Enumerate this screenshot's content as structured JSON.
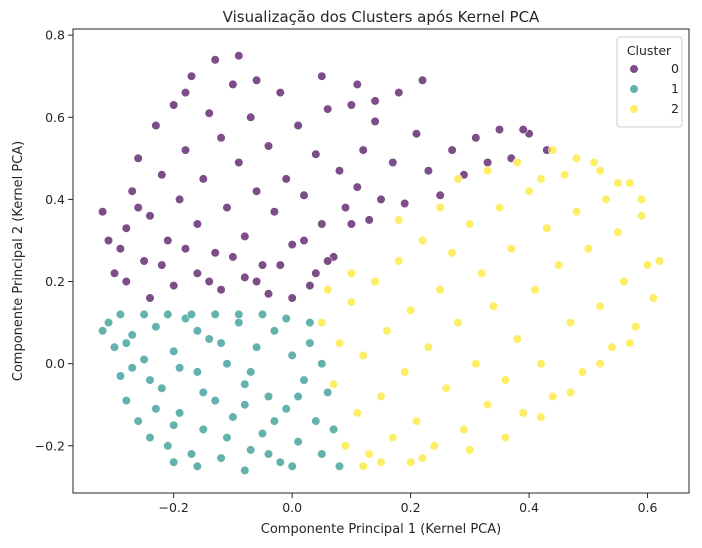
{
  "chart_data": {
    "type": "scatter",
    "title": "Visualização dos Clusters após Kernel PCA",
    "xlabel": "Componente Principal 1 (Kernel PCA)",
    "ylabel": "Componente Principal 2 (Kernel PCA)",
    "xlim": [
      -0.37,
      0.67
    ],
    "ylim": [
      -0.315,
      0.815
    ],
    "xticks": [
      -0.2,
      0.0,
      0.2,
      0.4,
      0.6
    ],
    "xtick_labels": [
      "−0.2",
      "0.0",
      "0.2",
      "0.4",
      "0.6"
    ],
    "yticks": [
      -0.2,
      0.0,
      0.2,
      0.4,
      0.6,
      0.8
    ],
    "ytick_labels": [
      "−0.2",
      "0.0",
      "0.2",
      "0.4",
      "0.6",
      "0.8"
    ],
    "grid": false,
    "legend": {
      "title": "Cluster",
      "placement": "top-right",
      "entries": [
        "0",
        "1",
        "2"
      ]
    },
    "series": [
      {
        "name": "0",
        "color": "#440154",
        "region": "upper-left",
        "points": [
          [
            -0.3,
            0.22
          ],
          [
            -0.29,
            0.28
          ],
          [
            -0.28,
            0.33
          ],
          [
            -0.27,
            0.42
          ],
          [
            -0.26,
            0.5
          ],
          [
            -0.25,
            0.25
          ],
          [
            -0.24,
            0.36
          ],
          [
            -0.23,
            0.58
          ],
          [
            -0.22,
            0.46
          ],
          [
            -0.21,
            0.3
          ],
          [
            -0.2,
            0.63
          ],
          [
            -0.19,
            0.4
          ],
          [
            -0.18,
            0.52
          ],
          [
            -0.17,
            0.7
          ],
          [
            -0.16,
            0.34
          ],
          [
            -0.15,
            0.45
          ],
          [
            -0.14,
            0.61
          ],
          [
            -0.13,
            0.27
          ],
          [
            -0.12,
            0.55
          ],
          [
            -0.11,
            0.38
          ],
          [
            -0.1,
            0.68
          ],
          [
            -0.09,
            0.49
          ],
          [
            -0.08,
            0.31
          ],
          [
            -0.07,
            0.6
          ],
          [
            -0.06,
            0.42
          ],
          [
            -0.05,
            0.24
          ],
          [
            -0.04,
            0.53
          ],
          [
            -0.03,
            0.37
          ],
          [
            -0.02,
            0.66
          ],
          [
            -0.01,
            0.45
          ],
          [
            0.0,
            0.29
          ],
          [
            0.01,
            0.58
          ],
          [
            0.02,
            0.41
          ],
          [
            0.03,
            0.19
          ],
          [
            0.04,
            0.51
          ],
          [
            0.05,
            0.34
          ],
          [
            0.06,
            0.62
          ],
          [
            0.07,
            0.26
          ],
          [
            0.08,
            0.47
          ],
          [
            0.09,
            0.38
          ],
          [
            0.1,
            0.63
          ],
          [
            0.11,
            0.43
          ],
          [
            0.12,
            0.52
          ],
          [
            0.13,
            0.35
          ],
          [
            0.14,
            0.59
          ],
          [
            0.15,
            0.4
          ],
          [
            0.17,
            0.49
          ],
          [
            0.19,
            0.39
          ],
          [
            0.21,
            0.56
          ],
          [
            0.23,
            0.47
          ],
          [
            0.25,
            0.41
          ],
          [
            0.27,
            0.52
          ],
          [
            0.29,
            0.46
          ],
          [
            0.31,
            0.55
          ],
          [
            0.33,
            0.49
          ],
          [
            0.35,
            0.57
          ],
          [
            0.37,
            0.5
          ],
          [
            0.4,
            0.56
          ],
          [
            0.43,
            0.52
          ],
          [
            -0.28,
            0.2
          ],
          [
            -0.24,
            0.16
          ],
          [
            -0.2,
            0.19
          ],
          [
            -0.16,
            0.22
          ],
          [
            -0.12,
            0.18
          ],
          [
            -0.08,
            0.21
          ],
          [
            -0.04,
            0.17
          ],
          [
            0.0,
            0.16
          ],
          [
            0.04,
            0.22
          ],
          [
            -0.31,
            0.3
          ],
          [
            -0.26,
            0.38
          ],
          [
            -0.22,
            0.24
          ],
          [
            -0.18,
            0.28
          ],
          [
            -0.14,
            0.2
          ],
          [
            -0.1,
            0.26
          ],
          [
            -0.06,
            0.2
          ],
          [
            -0.02,
            0.24
          ],
          [
            0.02,
            0.3
          ],
          [
            0.06,
            0.25
          ],
          [
            0.1,
            0.34
          ],
          [
            -0.32,
            0.37
          ],
          [
            -0.09,
            0.75
          ],
          [
            -0.13,
            0.74
          ],
          [
            0.05,
            0.7
          ],
          [
            0.11,
            0.68
          ],
          [
            0.18,
            0.66
          ],
          [
            0.22,
            0.69
          ],
          [
            -0.18,
            0.66
          ],
          [
            -0.06,
            0.69
          ],
          [
            0.14,
            0.64
          ],
          [
            0.39,
            0.57
          ]
        ]
      },
      {
        "name": "1",
        "color": "#21918c",
        "region": "lower-left",
        "points": [
          [
            -0.31,
            0.1
          ],
          [
            -0.3,
            0.04
          ],
          [
            -0.29,
            -0.03
          ],
          [
            -0.28,
            -0.09
          ],
          [
            -0.27,
            0.07
          ],
          [
            -0.26,
            -0.14
          ],
          [
            -0.25,
            0.01
          ],
          [
            -0.24,
            -0.18
          ],
          [
            -0.23,
            0.09
          ],
          [
            -0.22,
            -0.06
          ],
          [
            -0.21,
            -0.2
          ],
          [
            -0.2,
            0.03
          ],
          [
            -0.19,
            -0.12
          ],
          [
            -0.18,
            0.11
          ],
          [
            -0.17,
            -0.22
          ],
          [
            -0.16,
            -0.02
          ],
          [
            -0.15,
            -0.16
          ],
          [
            -0.14,
            0.06
          ],
          [
            -0.13,
            -0.09
          ],
          [
            -0.12,
            -0.23
          ],
          [
            -0.11,
            0.0
          ],
          [
            -0.1,
            -0.13
          ],
          [
            -0.09,
            0.1
          ],
          [
            -0.08,
            -0.05
          ],
          [
            -0.07,
            -0.21
          ],
          [
            -0.06,
            0.04
          ],
          [
            -0.05,
            -0.17
          ],
          [
            -0.04,
            -0.08
          ],
          [
            -0.03,
            0.08
          ],
          [
            -0.02,
            -0.24
          ],
          [
            -0.01,
            -0.11
          ],
          [
            0.0,
            0.02
          ],
          [
            0.01,
            -0.19
          ],
          [
            0.02,
            -0.04
          ],
          [
            0.03,
            0.05
          ],
          [
            0.04,
            -0.14
          ],
          [
            0.05,
            -0.22
          ],
          [
            0.06,
            -0.07
          ],
          [
            0.07,
            -0.16
          ],
          [
            0.08,
            -0.25
          ],
          [
            -0.29,
            0.12
          ],
          [
            -0.25,
            0.12
          ],
          [
            -0.21,
            0.12
          ],
          [
            -0.17,
            0.12
          ],
          [
            -0.13,
            0.12
          ],
          [
            -0.09,
            0.12
          ],
          [
            -0.05,
            0.12
          ],
          [
            -0.01,
            0.11
          ],
          [
            0.03,
            0.1
          ],
          [
            -0.27,
            -0.01
          ],
          [
            -0.23,
            -0.11
          ],
          [
            -0.19,
            -0.01
          ],
          [
            -0.15,
            -0.07
          ],
          [
            -0.11,
            -0.18
          ],
          [
            -0.07,
            -0.02
          ],
          [
            -0.03,
            -0.14
          ],
          [
            0.01,
            -0.08
          ],
          [
            0.05,
            0.0
          ],
          [
            -0.2,
            -0.24
          ],
          [
            -0.08,
            -0.26
          ],
          [
            0.0,
            -0.25
          ],
          [
            -0.16,
            -0.25
          ],
          [
            -0.32,
            0.08
          ],
          [
            -0.28,
            0.05
          ],
          [
            -0.24,
            -0.04
          ],
          [
            -0.2,
            -0.15
          ],
          [
            -0.16,
            0.08
          ],
          [
            -0.12,
            0.05
          ],
          [
            -0.08,
            -0.1
          ],
          [
            -0.04,
            -0.22
          ]
        ]
      },
      {
        "name": "2",
        "color": "#fde725",
        "region": "right",
        "points": [
          [
            0.05,
            0.1
          ],
          [
            0.07,
            -0.05
          ],
          [
            0.08,
            0.05
          ],
          [
            0.09,
            -0.2
          ],
          [
            0.1,
            0.15
          ],
          [
            0.11,
            -0.12
          ],
          [
            0.12,
            0.02
          ],
          [
            0.13,
            -0.22
          ],
          [
            0.14,
            0.2
          ],
          [
            0.15,
            -0.08
          ],
          [
            0.16,
            0.08
          ],
          [
            0.17,
            -0.18
          ],
          [
            0.18,
            0.25
          ],
          [
            0.19,
            -0.02
          ],
          [
            0.2,
            0.13
          ],
          [
            0.21,
            -0.14
          ],
          [
            0.22,
            0.3
          ],
          [
            0.23,
            0.04
          ],
          [
            0.24,
            -0.2
          ],
          [
            0.25,
            0.18
          ],
          [
            0.26,
            -0.06
          ],
          [
            0.27,
            0.27
          ],
          [
            0.28,
            0.1
          ],
          [
            0.29,
            -0.16
          ],
          [
            0.3,
            0.34
          ],
          [
            0.31,
            0.0
          ],
          [
            0.32,
            0.22
          ],
          [
            0.33,
            -0.1
          ],
          [
            0.34,
            0.14
          ],
          [
            0.35,
            0.38
          ],
          [
            0.36,
            -0.04
          ],
          [
            0.37,
            0.28
          ],
          [
            0.38,
            0.06
          ],
          [
            0.39,
            -0.12
          ],
          [
            0.4,
            0.42
          ],
          [
            0.41,
            0.18
          ],
          [
            0.42,
            0.0
          ],
          [
            0.43,
            0.33
          ],
          [
            0.44,
            -0.08
          ],
          [
            0.45,
            0.24
          ],
          [
            0.46,
            0.46
          ],
          [
            0.47,
            0.1
          ],
          [
            0.48,
            0.37
          ],
          [
            0.49,
            -0.02
          ],
          [
            0.5,
            0.28
          ],
          [
            0.51,
            0.49
          ],
          [
            0.52,
            0.14
          ],
          [
            0.53,
            0.4
          ],
          [
            0.54,
            0.04
          ],
          [
            0.55,
            0.32
          ],
          [
            0.56,
            0.2
          ],
          [
            0.57,
            0.44
          ],
          [
            0.58,
            0.09
          ],
          [
            0.59,
            0.36
          ],
          [
            0.6,
            0.24
          ],
          [
            0.61,
            0.16
          ],
          [
            0.62,
            0.25
          ],
          [
            0.44,
            0.52
          ],
          [
            0.48,
            0.5
          ],
          [
            0.52,
            0.47
          ],
          [
            0.15,
            -0.24
          ],
          [
            0.22,
            -0.23
          ],
          [
            0.3,
            -0.21
          ],
          [
            0.36,
            -0.18
          ],
          [
            0.42,
            -0.13
          ],
          [
            0.47,
            -0.07
          ],
          [
            0.52,
            0.0
          ],
          [
            0.57,
            0.05
          ],
          [
            0.1,
            0.22
          ],
          [
            0.06,
            0.18
          ],
          [
            0.12,
            -0.25
          ],
          [
            0.2,
            -0.24
          ],
          [
            0.28,
            0.45
          ],
          [
            0.33,
            0.47
          ],
          [
            0.38,
            0.49
          ],
          [
            0.42,
            0.45
          ],
          [
            0.18,
            0.35
          ],
          [
            0.25,
            0.38
          ],
          [
            0.55,
            0.44
          ],
          [
            0.59,
            0.4
          ]
        ]
      }
    ]
  }
}
